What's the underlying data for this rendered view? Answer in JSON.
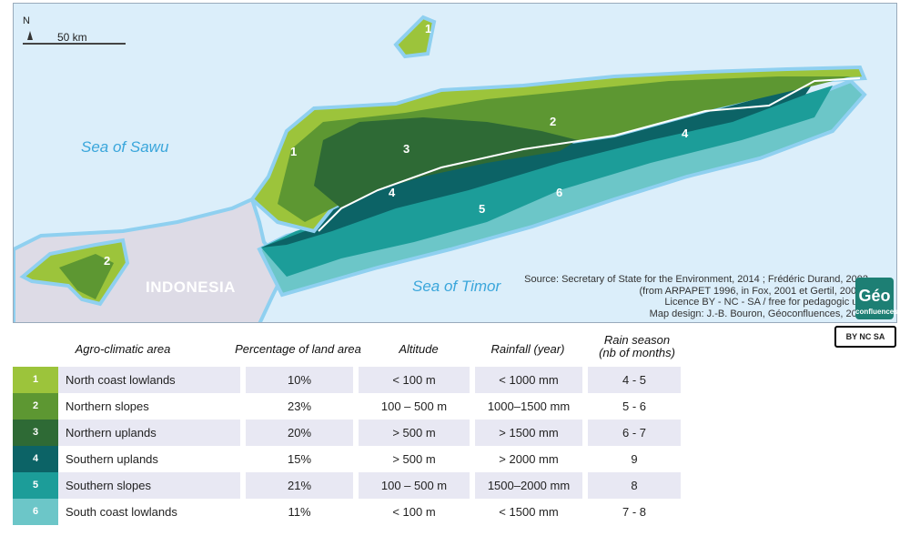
{
  "map": {
    "scale_label": "50 km",
    "north_label": "N",
    "sea_north": "Sea of Sawu",
    "sea_south": "Sea of Timor",
    "country": "INDONESIA",
    "zone_labels": [
      "1",
      "2",
      "3",
      "4",
      "5",
      "6",
      "1",
      "2",
      "4"
    ],
    "source_lines": [
      "Source: Secretary of State for the Environment, 2014 ; Frédéric Durand, 2002",
      "(from ARPAPET 1996, in Fox, 2001 et Gertil, 2001).",
      "Licence BY - NC - SA / free for pedagogic use",
      "Map design: J.-B. Bouron, Géoconfluences, 2021"
    ],
    "logo_text": "Géo",
    "logo_sub": "confluences",
    "cc_badge": "BY NC SA"
  },
  "colors": {
    "1": "#9cc43b",
    "2": "#5d9732",
    "3": "#2e6a35",
    "4": "#0c6366",
    "5": "#1c9d99",
    "6": "#6cc6c8",
    "sea": "#dbeefa",
    "indonesia": "#dddbe6"
  },
  "table": {
    "headers": [
      "Agro-climatic area",
      "Percentage of land area",
      "Altitude",
      "Rainfall (year)",
      "Rain season",
      "(nb of months)"
    ],
    "rows": [
      {
        "id": "1",
        "name": "North coast lowlands",
        "pct": "10%",
        "alt": "< 100 m",
        "rain": "< 1000 mm",
        "season": "4 - 5"
      },
      {
        "id": "2",
        "name": "Northern slopes",
        "pct": "23%",
        "alt": "100 – 500 m",
        "rain": "1000–1500 mm",
        "season": "5 - 6"
      },
      {
        "id": "3",
        "name": "Northern uplands",
        "pct": "20%",
        "alt": "> 500 m",
        "rain": "> 1500 mm",
        "season": "6 - 7"
      },
      {
        "id": "4",
        "name": "Southern uplands",
        "pct": "15%",
        "alt": "> 500 m",
        "rain": "> 2000 mm",
        "season": "9"
      },
      {
        "id": "5",
        "name": "Southern slopes",
        "pct": "21%",
        "alt": "100 – 500 m",
        "rain": "1500–2000 mm",
        "season": "8"
      },
      {
        "id": "6",
        "name": "South coast lowlands",
        "pct": "11%",
        "alt": "< 100 m",
        "rain": "< 1500 mm",
        "season": "7 - 8"
      }
    ]
  }
}
